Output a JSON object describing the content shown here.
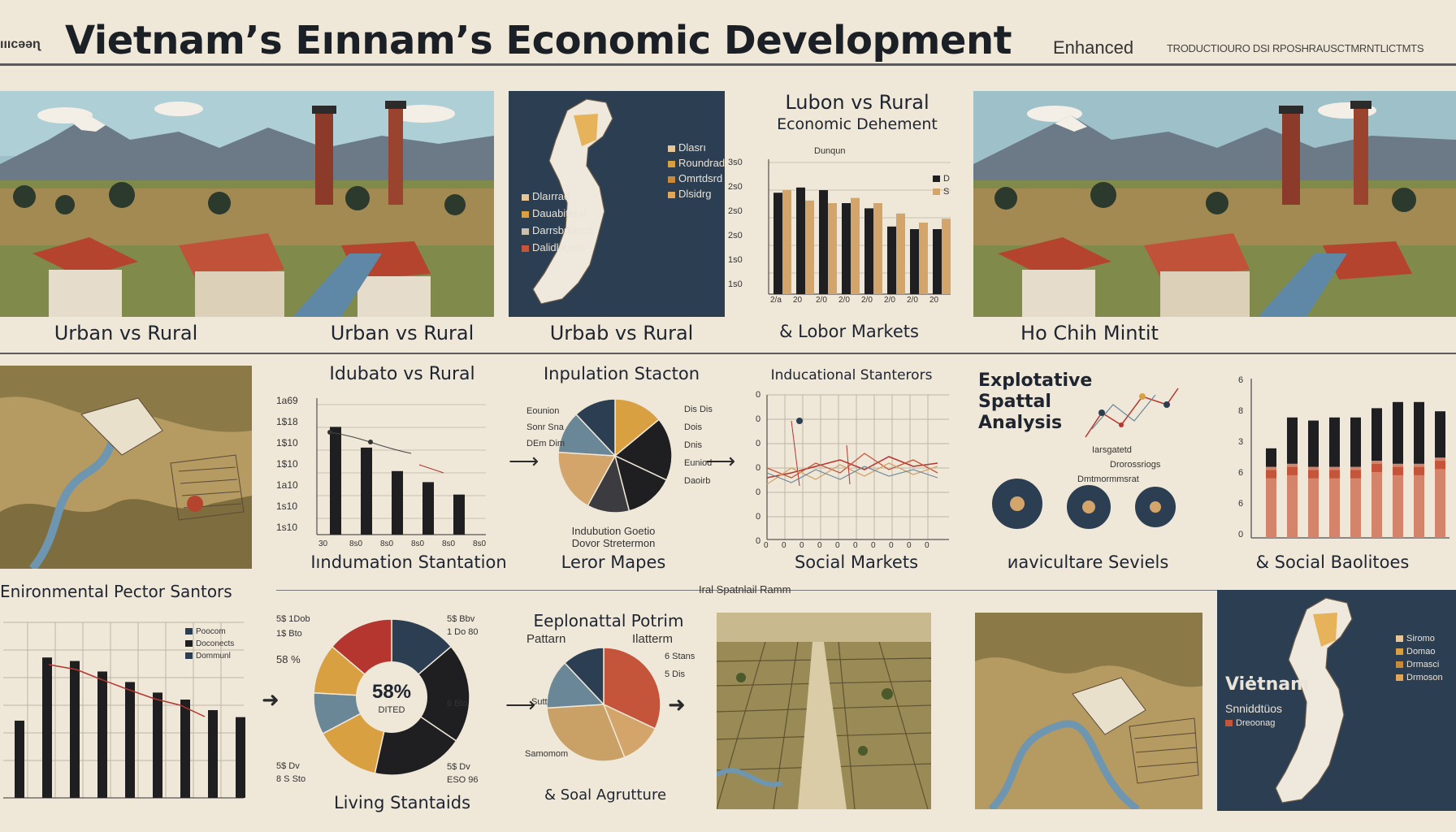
{
  "header": {
    "left_tag": "ıııcəəɳ",
    "title": "Vietnam’s Eınnam’s Economic Development",
    "enhanced": "Enhanced",
    "enhanced_sub": "TRODUCTIOURO DSI RPOSHRAUSCTMRNTLICTMTS"
  },
  "row1": {
    "captions": [
      "Urban vs Rural",
      "Urban vs Rural",
      "Urbab vs Rural",
      "& Lobor Markets",
      "Ho Chih Mintit"
    ],
    "map_legend": [
      "Dlasrı",
      "Roundrad",
      "Omrtdsrd",
      "Dlsidrg"
    ],
    "map_legend_left": [
      "Dlaırrad",
      "Dauabiteral",
      "Darrsbrtuncıl",
      "Dalidlogıon"
    ],
    "bar_chart": {
      "title_line1": "Lubon vs Rural",
      "title_line2": "Economic Dehement",
      "subtitle": "Dunqun",
      "yticks": [
        "3s0",
        "2s0",
        "2s0",
        "2s0",
        "1s0",
        "1s0"
      ],
      "xticks": [
        "2/a",
        "20",
        "2/0",
        "2/0",
        "2/0",
        "2/0",
        "2/0",
        "20"
      ],
      "legend": [
        "D",
        "S"
      ]
    }
  },
  "row2": {
    "captions": [
      "Iındumation   Stantation",
      "Leror Mapes",
      "Social Markets",
      "ᴎavicultare Seviels",
      "& Social Baolitoes"
    ],
    "bar_title": "Idubato vs Rural",
    "bar_yticks": [
      "1a69",
      "1$18",
      "1$10",
      "1$10",
      "1a10",
      "1s10",
      "1s10"
    ],
    "bar_xticks": [
      "30",
      "8s0",
      "8s0",
      "8s0",
      "8s0",
      "8s0"
    ],
    "pie_title": "Inpulation Stacton",
    "pie_sub": "Indubution Goetio\nDovor Stretermon",
    "pie_left_labels": [
      "Eounion",
      "Sonr Sna",
      "DEm Dim"
    ],
    "pie_right_labels": [
      "Dis Dis",
      "Dois",
      "Dnis",
      "Euniod",
      "Daoirb"
    ],
    "line_title": "Inducational Stanterors",
    "line_yticks": [
      "0",
      "0",
      "0",
      "0",
      "0",
      "0",
      "0"
    ],
    "line_xticks": [
      "0",
      "0",
      "0",
      "0",
      "0",
      "0",
      "0",
      "0",
      "0",
      "0"
    ],
    "spatial_title": [
      "Explotative",
      "Spattal",
      "Analysis"
    ],
    "spatial_labels": [
      "Iarsgatetd",
      "Drorossriogs",
      "Dmtmormmsrat"
    ],
    "right_bar_yticks": [
      "6",
      "8",
      "3",
      "6",
      "6",
      "0"
    ]
  },
  "row3": {
    "left_title": "Enironmental Pector Santors",
    "center_title": "Iral Spatnlail Ramm",
    "donut_center": "58%",
    "donut_center_sub": "DITED",
    "donut_labels_left": [
      "5$ 1Dob",
      "1$ Bto",
      "58 %",
      "5$ Dv",
      "8 S Sto"
    ],
    "donut_labels_right": [
      "5$ Bbv",
      "1 Do 80",
      "6 Bto",
      "5$ Dv",
      "ESO 96"
    ],
    "left_legend": [
      "Poocom",
      "Doconects",
      "Dommunl"
    ],
    "pie2_title": "Eeplonattal Potrim",
    "pie2_sub_left": "Pattarn",
    "pie2_sub_right": "Ilatterm",
    "pie2_labels": [
      "6 Stans",
      "5 Dis",
      "Sutt",
      "Samomom"
    ],
    "captions": [
      "Living Stantaids",
      "& Soal Agrutture"
    ],
    "vietnam_label": "Viėtnam",
    "vietnam_sub": [
      "Snniddtüos",
      "Dreoonag"
    ],
    "vietnam_legend": [
      "Siromo",
      "Domao",
      "Drmasci",
      "Drmoson"
    ]
  },
  "colors": {
    "background": "#efe7d8",
    "navy": "#2c3e52",
    "black_bar": "#1f1f22",
    "tan": "#d3a56b",
    "rust": "#c4553a",
    "red": "#b5352f",
    "mustard": "#d9a042",
    "slate": "#6a8797"
  },
  "icons": [
    "arrow-right-icon"
  ]
}
